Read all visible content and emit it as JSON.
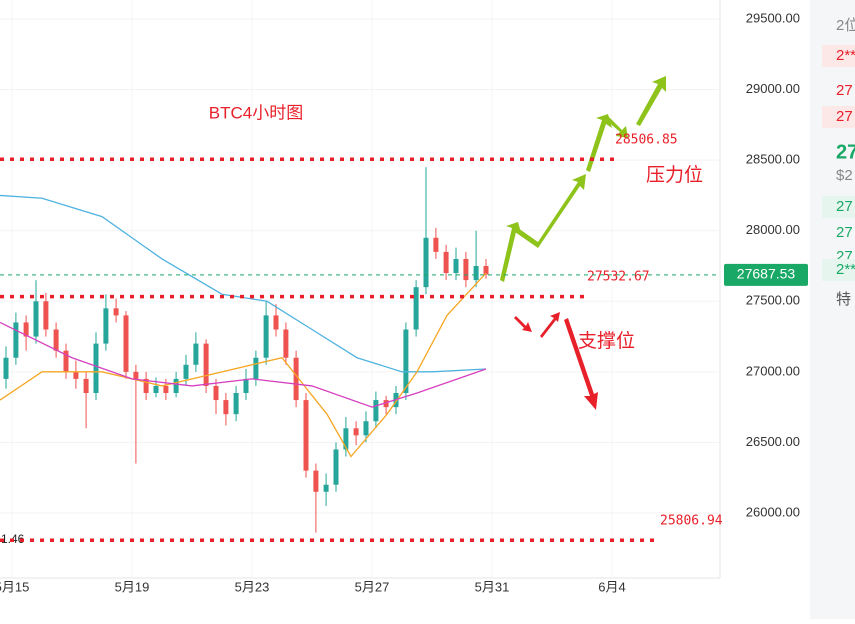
{
  "chart_data": {
    "type": "candlestick",
    "title": "BTC4小时图",
    "annotations": [
      "压力位",
      "支撑位"
    ],
    "x": [
      14.8,
      15.13,
      15.47,
      15.8,
      16.13,
      16.47,
      16.8,
      17.13,
      17.47,
      17.8,
      18.13,
      18.47,
      18.8,
      19.13,
      19.47,
      19.8,
      20.13,
      20.47,
      20.8,
      21.13,
      21.47,
      21.8,
      22.13,
      22.47,
      22.8,
      23.13,
      23.47,
      23.8,
      24.13,
      24.47,
      24.8,
      25.13,
      25.47,
      25.8,
      26.13,
      26.47,
      26.8,
      27.13,
      27.47,
      27.8,
      28.13,
      28.47,
      28.8,
      29.13,
      29.47,
      29.8,
      30.13,
      30.47,
      30.8
    ],
    "open": [
      26950,
      27100,
      27350,
      27250,
      27500,
      27300,
      27150,
      27000,
      26950,
      26850,
      27200,
      27450,
      27400,
      27000,
      26950,
      26850,
      26900,
      26850,
      26950,
      27050,
      27200,
      26900,
      26800,
      26700,
      26850,
      26950,
      27100,
      27400,
      27300,
      27100,
      26800,
      26300,
      26150,
      26200,
      26450,
      26600,
      26550,
      26650,
      26800,
      26750,
      26850,
      27300,
      27600,
      27950,
      27850,
      27700,
      27800,
      27650,
      27750
    ],
    "high": [
      27180,
      27420,
      27400,
      27650,
      27560,
      27350,
      27200,
      27080,
      27000,
      27280,
      27550,
      27520,
      27430,
      27050,
      27000,
      26960,
      26950,
      27000,
      27120,
      27280,
      27230,
      26950,
      26850,
      26900,
      27020,
      27150,
      27500,
      27480,
      27350,
      27150,
      26850,
      26350,
      26280,
      26500,
      26680,
      26650,
      26720,
      26860,
      26830,
      26900,
      27350,
      27650,
      28450,
      28020,
      27900,
      27880,
      27850,
      28000,
      27800
    ],
    "low": [
      26880,
      27050,
      27150,
      27200,
      27250,
      27100,
      26950,
      26880,
      26600,
      26800,
      27150,
      27350,
      26950,
      26350,
      26800,
      26820,
      26800,
      26820,
      26900,
      27000,
      26850,
      26700,
      26620,
      26650,
      26800,
      26900,
      27050,
      27250,
      27050,
      26750,
      26250,
      25860,
      26050,
      26150,
      26400,
      26480,
      26500,
      26600,
      26700,
      26700,
      26800,
      27250,
      27550,
      27800,
      27650,
      27650,
      27600,
      27600,
      27660
    ],
    "close": [
      27100,
      27350,
      27250,
      27500,
      27300,
      27150,
      27000,
      26950,
      26850,
      27200,
      27450,
      27400,
      27000,
      26950,
      26850,
      26900,
      26850,
      26950,
      27050,
      27200,
      26900,
      26800,
      26700,
      26850,
      26950,
      27100,
      27400,
      27300,
      27100,
      26800,
      26300,
      26150,
      26200,
      26450,
      26600,
      26550,
      26650,
      26800,
      26750,
      26850,
      27300,
      27600,
      27950,
      27850,
      27700,
      27800,
      27650,
      27750,
      27690
    ],
    "up_color": "#26a69a",
    "down_color": "#ef5350",
    "moving_averages": [
      {
        "color": "#4fb3e0",
        "x": [
          14.6,
          16,
          18,
          20,
          22,
          23.5,
          25,
          26.5,
          28,
          29,
          30.8
        ],
        "values": [
          28250,
          28230,
          28100,
          27800,
          27550,
          27500,
          27300,
          27100,
          27000,
          27000,
          27020
        ]
      },
      {
        "color": "#f5a623",
        "x": [
          14.6,
          16,
          18,
          20,
          22,
          24,
          25.5,
          26.3,
          27.5,
          28.5,
          29.5,
          30.8
        ],
        "values": [
          26800,
          27000,
          27000,
          26900,
          27000,
          27100,
          26700,
          26400,
          26700,
          27000,
          27400,
          27700
        ]
      },
      {
        "color": "#d63fbf",
        "x": [
          14.6,
          17,
          19,
          21,
          23,
          25,
          27,
          28.5,
          30.8
        ],
        "values": [
          27350,
          27100,
          26950,
          26900,
          26950,
          26900,
          26750,
          26850,
          27020
        ]
      }
    ],
    "levels": [
      {
        "value": 28506.85,
        "label": "28506.85",
        "color": "#e8202a"
      },
      {
        "value": 27532.67,
        "label": "27532.67",
        "color": "#e8202a"
      },
      {
        "value": 25806.94,
        "label": "25806.94",
        "color": "#e8202a"
      }
    ],
    "cut_label": "1.46",
    "last_price": {
      "value": 27687.53,
      "label": "27687.53",
      "color": "#1aa867"
    },
    "xlim": [
      14.6,
      38.6
    ],
    "xticks": [
      {
        "value": 15,
        "label": "5月15"
      },
      {
        "value": 19,
        "label": "5月19"
      },
      {
        "value": 23,
        "label": "5月23"
      },
      {
        "value": 27,
        "label": "5月27"
      },
      {
        "value": 31,
        "label": "5月31"
      },
      {
        "value": 35,
        "label": "6月4"
      }
    ],
    "ylim": [
      25539,
      29635
    ],
    "yticks": [
      {
        "value": 26000,
        "label": "26000.00"
      },
      {
        "value": 26500,
        "label": "26500.00"
      },
      {
        "value": 27000,
        "label": "27000.00"
      },
      {
        "value": 27500,
        "label": "27500.00"
      },
      {
        "value": 28000,
        "label": "28000.00"
      },
      {
        "value": 28500,
        "label": "28500.00"
      },
      {
        "value": 29000,
        "label": "29000.00"
      },
      {
        "value": 29500,
        "label": "29500.00"
      }
    ],
    "grid": true
  },
  "side_panel": [
    "2位",
    "2**",
    "27",
    "27",
    "27",
    "$2",
    "27",
    "27",
    "27",
    "2**",
    "特"
  ]
}
